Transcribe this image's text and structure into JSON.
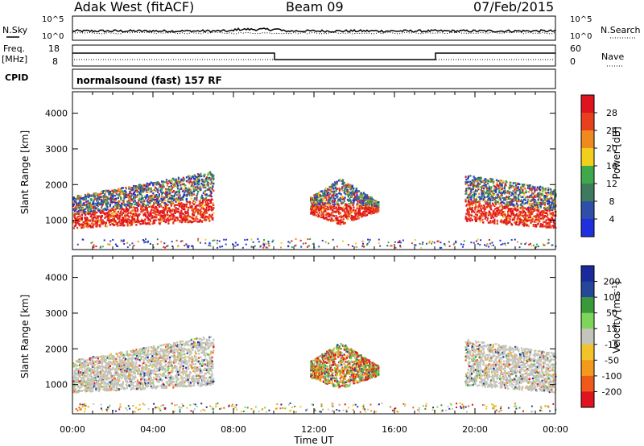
{
  "header": {
    "station": "Adak West (fitACF)",
    "beam": "Beam 09",
    "date": "07/Feb/2015"
  },
  "panels": {
    "nsky_label": "N.Sky",
    "nsearch_label": "N.Search",
    "freq_label": "Freq.",
    "freq_unit": "[MHz]",
    "nave_label": "Nave",
    "cpid_label": "CPID",
    "cpid_value": "normalsound (fast) 157 RF",
    "noise_ticks_left": [
      "10^5",
      "10^0"
    ],
    "noise_ticks_right": [
      "10^5",
      "10^0"
    ],
    "freq_ticks": [
      "18",
      "8"
    ],
    "nave_ticks": [
      "60",
      "0"
    ]
  },
  "colors": {
    "power": [
      "#1f2fe0",
      "#2e4fa8",
      "#3e7a5e",
      "#3fa84a",
      "#f0cf1f",
      "#f08a1f",
      "#e8401f",
      "#e0141f"
    ],
    "velocity": [
      "#e0141f",
      "#ee5a1a",
      "#f39a1c",
      "#f2c42a",
      "#c4c4bc",
      "#7fd45a",
      "#3a9a3a",
      "#25479a",
      "#1a2a9a"
    ]
  },
  "chart_data": [
    {
      "type": "heatmap",
      "title": "",
      "xlabel": "Time UT",
      "ylabel": "Slant Range [km]",
      "x_ticks": [
        "00:00",
        "04:00",
        "08:00",
        "12:00",
        "16:00",
        "20:00",
        "00:00"
      ],
      "y_ticks": [
        "1000",
        "2000",
        "3000",
        "4000"
      ],
      "xlim": [
        0,
        24
      ],
      "ylim": [
        180,
        4600
      ],
      "colorbar_label": "Power [dB]",
      "colorbar_ticks": [
        "4",
        "8",
        "12",
        "16",
        "20",
        "24",
        "28"
      ],
      "colorbar_range": [
        0,
        30
      ],
      "regions": [
        {
          "t0": 0.0,
          "t1": 7.0,
          "r_low": 750,
          "r_high": 2500,
          "level": "high"
        },
        {
          "t0": 11.8,
          "t1": 15.2,
          "r_low": 1000,
          "r_high": 2200,
          "level": "mixed"
        },
        {
          "t0": 19.5,
          "t1": 24.0,
          "r_low": 750,
          "r_high": 2400,
          "level": "high"
        }
      ]
    },
    {
      "type": "heatmap",
      "title": "",
      "xlabel": "Time UT",
      "ylabel": "Slant Range [km]",
      "x_ticks": [
        "00:00",
        "04:00",
        "08:00",
        "12:00",
        "16:00",
        "20:00",
        "00:00"
      ],
      "y_ticks": [
        "1000",
        "2000",
        "3000",
        "4000"
      ],
      "xlim": [
        0,
        24
      ],
      "ylim": [
        180,
        4600
      ],
      "colorbar_label": "Velocity [m s",
      "colorbar_label_sup": "-1",
      "colorbar_label_end": "]",
      "colorbar_ticks": [
        "200",
        "100",
        "50",
        "15",
        "-15",
        "-50",
        "-100",
        "-200"
      ],
      "colorbar_range": [
        -250,
        250
      ],
      "regions": [
        {
          "t0": 0.0,
          "t1": 7.0,
          "r_low": 750,
          "r_high": 2300,
          "level": "low-velocity"
        },
        {
          "t0": 11.8,
          "t1": 15.2,
          "r_low": 1000,
          "r_high": 2200,
          "level": "mixed"
        },
        {
          "t0": 19.5,
          "t1": 24.0,
          "r_low": 800,
          "r_high": 2300,
          "level": "low-velocity"
        }
      ]
    }
  ]
}
